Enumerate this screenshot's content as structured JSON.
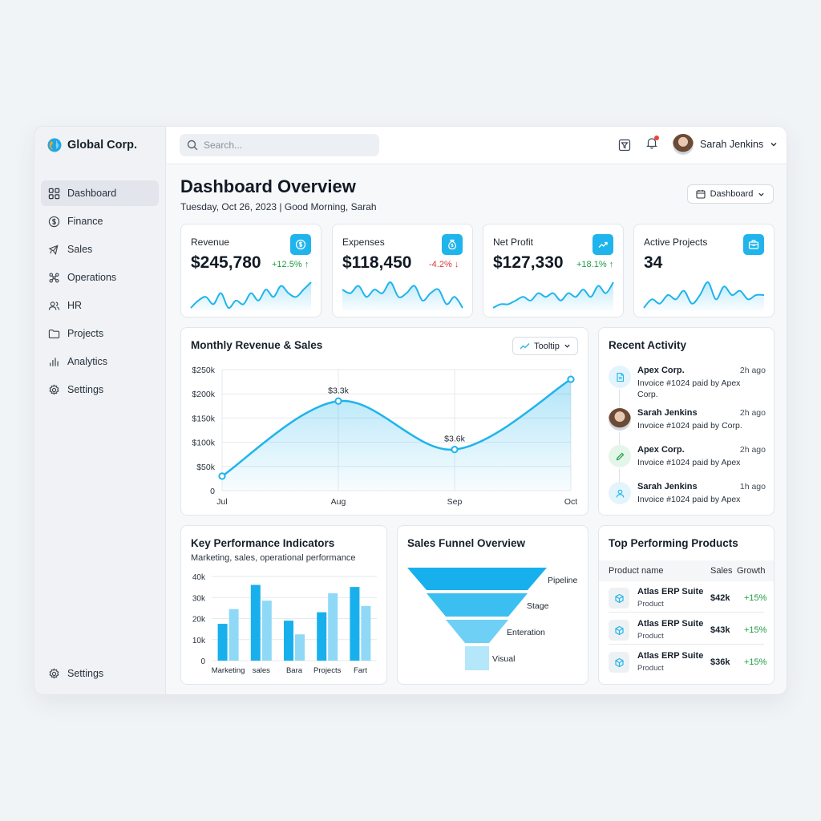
{
  "app": {
    "brand": "Global Corp."
  },
  "sidebar": {
    "items": [
      {
        "label": "Dashboard",
        "icon": "grid-icon",
        "active": true
      },
      {
        "label": "Finance",
        "icon": "dollar-circle-icon"
      },
      {
        "label": "Sales",
        "icon": "megaphone-icon"
      },
      {
        "label": "Operations",
        "icon": "network-icon"
      },
      {
        "label": "HR",
        "icon": "users-icon"
      },
      {
        "label": "Projects",
        "icon": "folder-icon"
      },
      {
        "label": "Analytics",
        "icon": "bar-chart-icon"
      },
      {
        "label": "Settings",
        "icon": "gear-icon"
      }
    ],
    "bottom": {
      "label": "Settings",
      "icon": "gear-icon"
    }
  },
  "topbar": {
    "search_placeholder": "Search...",
    "user_name": "Sarah Jenkins"
  },
  "header": {
    "title": "Dashboard Overview",
    "subtitle": "Tuesday, Oct 26, 2023 | Good Morning, Sarah",
    "view_select": "Dashboard"
  },
  "kpis": [
    {
      "label": "Revenue",
      "value": "$245,780",
      "delta": "+12.5%",
      "direction": "up",
      "icon": "dollar-coin-icon",
      "spark": [
        3,
        5,
        6,
        4,
        7,
        3,
        5,
        4,
        7,
        5,
        8,
        6,
        9,
        7,
        6,
        8,
        10
      ]
    },
    {
      "label": "Expenses",
      "value": "$118,450",
      "delta": "-4.2%",
      "direction": "down",
      "icon": "money-bag-icon",
      "spark": [
        7,
        6,
        8,
        5,
        7,
        6,
        9,
        5,
        6,
        8,
        4,
        6,
        7,
        3,
        5,
        2
      ]
    },
    {
      "label": "Net Profit",
      "value": "$127,330",
      "delta": "+18.1%",
      "direction": "up",
      "icon": "trend-up-icon",
      "spark": [
        3,
        4,
        4,
        5,
        6,
        5,
        7,
        6,
        7,
        5,
        7,
        6,
        8,
        6,
        9,
        7,
        10
      ]
    },
    {
      "label": "Active Projects",
      "value": "34",
      "delta": "",
      "direction": "",
      "icon": "briefcase-icon",
      "spark": [
        3,
        5,
        4,
        6,
        5,
        7,
        4,
        6,
        9,
        5,
        8,
        6,
        7,
        5,
        6,
        6
      ]
    }
  ],
  "colors": {
    "accent": "#20b4ec",
    "positive": "#1f9d43",
    "negative": "#d9383a"
  },
  "monthly": {
    "title": "Monthly Revenue & Sales",
    "control_label": "Tooltip",
    "chart_data": {
      "type": "area",
      "categories": [
        "Jul",
        "Aug",
        "Sep",
        "Oct"
      ],
      "values": [
        30,
        185,
        85,
        230
      ],
      "ylim": [
        0,
        250
      ],
      "yticks": [
        0,
        50,
        100,
        150,
        200,
        250
      ],
      "ytick_labels": [
        "0",
        "$50k",
        "$100k",
        "$150k",
        "$200k",
        "$250k"
      ],
      "annotations": [
        {
          "category": "Aug",
          "label": "$3.3k"
        },
        {
          "category": "Sep",
          "label": "$3.6k"
        }
      ],
      "grid": true
    }
  },
  "activity": {
    "title": "Recent Activity",
    "items": [
      {
        "name": "Apex Corp.",
        "time": "2h ago",
        "desc": "Invoice #1024 paid by Apex Corp.",
        "icon": "document-icon"
      },
      {
        "name": "Sarah Jenkins",
        "time": "2h ago",
        "desc": "Invoice #1024 paid by Corp.",
        "icon": "avatar"
      },
      {
        "name": "Apex Corp.",
        "time": "2h ago",
        "desc": "Invoice #1024 paid by Apex",
        "icon": "pencil-icon"
      },
      {
        "name": "Sarah Jenkins",
        "time": "1h ago",
        "desc": "Invoice #1024 paid by Apex",
        "icon": "user-icon"
      }
    ]
  },
  "kpi_chart": {
    "title": "Key Performance Indicators",
    "subtitle": "Marketing, sales, operational performance",
    "chart_data": {
      "type": "bar",
      "categories": [
        "Marketing",
        "sales",
        "Bara",
        "Projects",
        "Fart"
      ],
      "series": [
        {
          "values": [
            17.5,
            36,
            19,
            23,
            35
          ]
        },
        {
          "values": [
            24.5,
            28.5,
            12.5,
            32,
            26
          ]
        }
      ],
      "ylim": [
        0,
        40
      ],
      "yticks": [
        0,
        10,
        20,
        30,
        40
      ],
      "ytick_labels": [
        "0",
        "10k",
        "20k",
        "30k",
        "40k"
      ],
      "grid": true
    }
  },
  "funnel": {
    "title": "Sales Funnel Overview",
    "stages": [
      "Pipeline",
      "Stage",
      "Enteration",
      "Visual"
    ]
  },
  "products": {
    "title": "Top Performing Products",
    "headers": {
      "name": "Product name",
      "sales": "Sales",
      "growth": "Growth"
    },
    "rows": [
      {
        "name": "Atlas ERP Suite",
        "type": "Product",
        "sales": "$42k",
        "growth": "+15%"
      },
      {
        "name": "Atlas ERP Suite",
        "type": "Product",
        "sales": "$43k",
        "growth": "+15%"
      },
      {
        "name": "Atlas ERP Suite",
        "type": "Product",
        "sales": "$36k",
        "growth": "+15%"
      }
    ]
  }
}
